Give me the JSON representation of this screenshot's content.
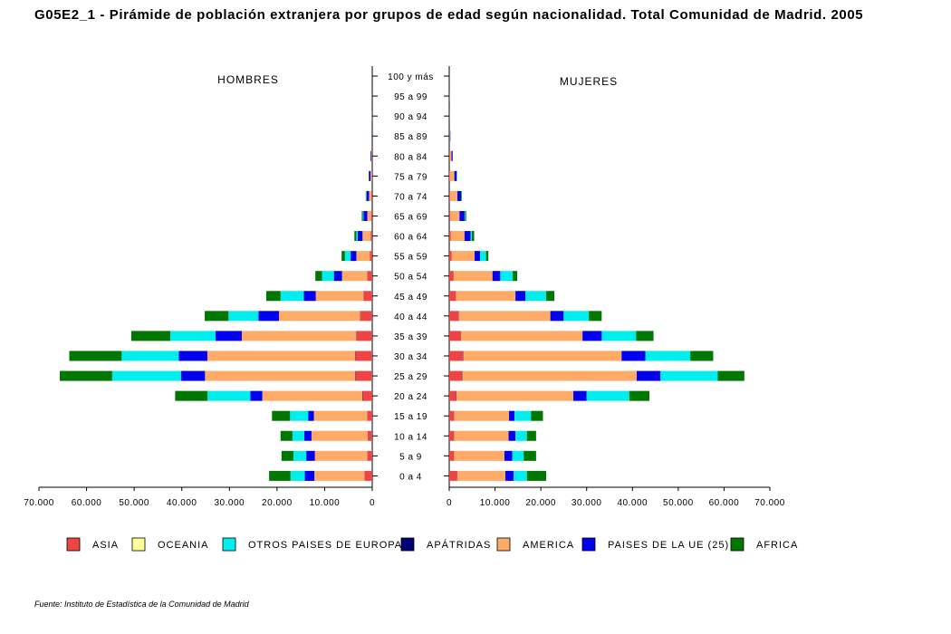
{
  "title": "G05E2_1 - Pirámide de población extranjera por grupos de edad según nacionalidad. Total Comunidad de Madrid. 2005",
  "source": "Fuente: Instituto de Estadística de la Comunidad de Madrid",
  "chart_data": {
    "type": "bar",
    "orientation": "horizontal-population-pyramid",
    "left_label": "HOMBRES",
    "right_label": "MUJERES",
    "categories": [
      "0 a 4",
      "5 a 9",
      "10 a 14",
      "15 a 19",
      "20 a 24",
      "25 a 29",
      "30 a 34",
      "35 a 39",
      "40 a  44",
      "45 a 49",
      "50 a 54",
      "55 a 59",
      "60 a 64",
      "65 a 69",
      "70 a 74",
      "75 a 79",
      "80 a 84",
      "85 a 89",
      "90 a 94",
      "95 a 99",
      "100 y más"
    ],
    "x_ticks_left": [
      "70.000",
      "60.000",
      "50.000",
      "40.000",
      "30.000",
      "20.000",
      "10.000",
      "0"
    ],
    "x_ticks_right": [
      "0",
      "10.000",
      "20.000",
      "30.000",
      "40.000",
      "50.000",
      "60.000",
      "70.000"
    ],
    "xlim": [
      0,
      70000
    ],
    "grid": false,
    "legend_position": "bottom",
    "colors": {
      "ASIA": "#ee4444",
      "OCEANIA": "#ffff99",
      "OTROS PAISES DE EUROPA": "#00eeee",
      "APÁTRIDAS": "#000077",
      "AMERICA": "#ffaa66",
      "PAISES DE LA UE (25)": "#0000ee",
      "AFRICA": "#007700"
    },
    "stack_order": [
      "ASIA",
      "OCEANIA",
      "APÁTRIDAS",
      "AMERICA",
      "PAISES DE LA UE (25)",
      "OTROS PAISES DE EUROPA",
      "AFRICA"
    ],
    "legend_order": [
      "ASIA",
      "OCEANIA",
      "OTROS PAISES DE EUROPA",
      "APÁTRIDAS",
      "AMERICA",
      "PAISES DE LA UE (25)",
      "AFRICA"
    ],
    "hombres": [
      {
        "name": "ASIA",
        "values": [
          1600,
          1000,
          900,
          1000,
          2000,
          3500,
          3500,
          3300,
          2500,
          1800,
          1000,
          500,
          300,
          200,
          150,
          100,
          80,
          30,
          10,
          5,
          3
        ]
      },
      {
        "name": "OCEANIA",
        "values": [
          10,
          10,
          10,
          10,
          20,
          30,
          30,
          20,
          20,
          10,
          10,
          10,
          5,
          5,
          3,
          2,
          2,
          1,
          1,
          0,
          0
        ]
      },
      {
        "name": "APÁTRIDAS",
        "values": [
          50,
          50,
          50,
          50,
          80,
          100,
          100,
          80,
          60,
          50,
          40,
          30,
          40,
          40,
          30,
          20,
          15,
          10,
          5,
          2,
          1
        ]
      },
      {
        "name": "AMERICA",
        "values": [
          10500,
          11000,
          11800,
          11200,
          21000,
          31500,
          31000,
          24000,
          17000,
          10000,
          5300,
          2800,
          1700,
          800,
          500,
          250,
          100,
          30,
          10,
          5,
          2
        ]
      },
      {
        "name": "PAISES DE LA UE (25)",
        "values": [
          2000,
          1800,
          1500,
          1200,
          2500,
          5000,
          6000,
          5500,
          4300,
          2500,
          1700,
          1200,
          1000,
          800,
          500,
          300,
          150,
          50,
          20,
          5,
          2
        ]
      },
      {
        "name": "OTROS PAISES DE EUROPA",
        "values": [
          3000,
          2700,
          2500,
          3800,
          9000,
          14500,
          12000,
          9500,
          6300,
          4900,
          2500,
          1200,
          300,
          150,
          80,
          40,
          20,
          10,
          5,
          1,
          0
        ]
      },
      {
        "name": "AFRICA",
        "values": [
          4500,
          2500,
          2500,
          3800,
          6800,
          11000,
          11000,
          8200,
          5000,
          3000,
          1400,
          700,
          400,
          200,
          100,
          50,
          20,
          10,
          5,
          1,
          0
        ]
      }
    ],
    "mujeres": [
      {
        "name": "ASIA",
        "values": [
          1700,
          1000,
          1000,
          1000,
          1500,
          2800,
          3000,
          2500,
          2000,
          1400,
          900,
          500,
          300,
          200,
          150,
          100,
          80,
          30,
          10,
          5,
          3
        ]
      },
      {
        "name": "OCEANIA",
        "values": [
          10,
          10,
          10,
          10,
          20,
          30,
          30,
          20,
          20,
          10,
          10,
          10,
          5,
          5,
          3,
          2,
          2,
          1,
          1,
          0,
          0
        ]
      },
      {
        "name": "APÁTRIDAS",
        "values": [
          50,
          50,
          50,
          50,
          80,
          100,
          100,
          80,
          60,
          50,
          40,
          30,
          40,
          40,
          30,
          20,
          15,
          10,
          5,
          2,
          1
        ]
      },
      {
        "name": "AMERICA",
        "values": [
          10500,
          11000,
          11900,
          12000,
          25500,
          38000,
          34500,
          26500,
          20000,
          13000,
          8500,
          5000,
          3000,
          2000,
          1600,
          1000,
          400,
          100,
          50,
          20,
          5
        ]
      },
      {
        "name": "PAISES DE LA UE (25)",
        "values": [
          1800,
          1700,
          1500,
          1200,
          2900,
          5200,
          5200,
          4200,
          2900,
          2200,
          1700,
          1200,
          1300,
          1100,
          800,
          500,
          250,
          100,
          50,
          5,
          2
        ]
      },
      {
        "name": "OTROS PAISES DE EUROPA",
        "values": [
          2900,
          2500,
          2500,
          3600,
          9300,
          12500,
          9800,
          7500,
          5500,
          4500,
          2700,
          1300,
          300,
          150,
          80,
          40,
          20,
          10,
          5,
          1,
          0
        ]
      },
      {
        "name": "AFRICA",
        "values": [
          4200,
          2700,
          2000,
          2600,
          4400,
          5800,
          5000,
          3800,
          2800,
          1800,
          1000,
          500,
          500,
          200,
          100,
          50,
          20,
          10,
          5,
          1,
          0
        ]
      }
    ],
    "legend_entries": [
      "ASIA",
      "OCEANIA",
      "OTROS PAISES DE EUROPA",
      "APÁTRIDAS",
      "AMERICA",
      "PAISES DE LA UE (25)",
      "AFRICA"
    ]
  }
}
